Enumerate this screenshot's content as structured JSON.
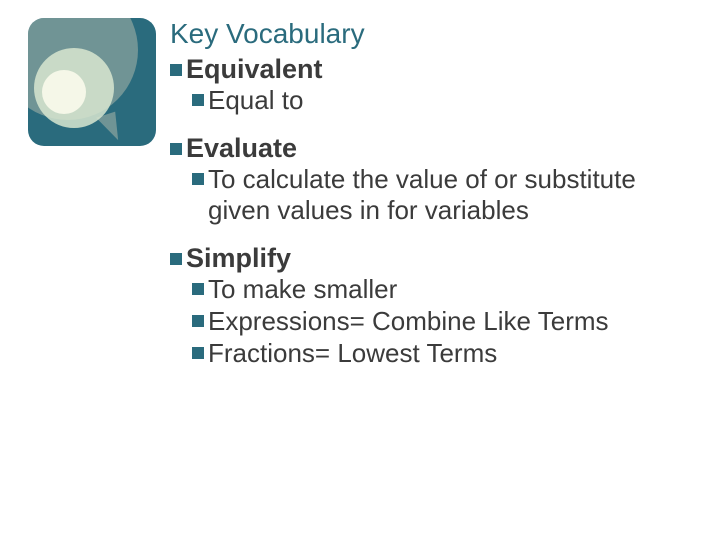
{
  "title": {
    "text": "Key Vocabulary",
    "color": "#2a6b7d"
  },
  "bullet_color": "#2a6b7d",
  "icon": {
    "bg": "#2a6b7d"
  },
  "items": [
    {
      "term": "Equivalent",
      "defs": [
        "Equal to"
      ]
    },
    {
      "term": "Evaluate",
      "defs": [
        "To calculate the value of or substitute given values in for variables"
      ]
    },
    {
      "term": "Simplify",
      "defs": [
        "To make smaller",
        "Expressions= Combine Like Terms",
        "Fractions= Lowest Terms"
      ]
    }
  ]
}
